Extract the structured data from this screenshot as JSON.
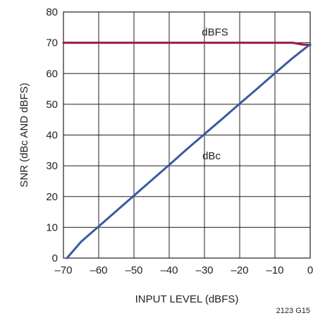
{
  "chart_data": {
    "type": "line",
    "xlabel": "INPUT LEVEL (dBFS)",
    "ylabel": "SNR (dBc AND dBFS)",
    "xlim": [
      -70,
      0
    ],
    "ylim": [
      0,
      80
    ],
    "x_ticks": [
      -70,
      -60,
      -50,
      -40,
      -30,
      -20,
      -10,
      0
    ],
    "x_tick_labels": [
      "–70",
      "–60",
      "–50",
      "–40",
      "–30",
      "–20",
      "–10",
      "0"
    ],
    "y_ticks": [
      0,
      10,
      20,
      30,
      40,
      50,
      60,
      70,
      80
    ],
    "y_tick_labels": [
      "0",
      "10",
      "20",
      "30",
      "40",
      "50",
      "60",
      "70",
      "80"
    ],
    "grid": true,
    "legend": "none",
    "series": [
      {
        "name": "dBFS",
        "color": "#9b1c40",
        "x": [
          -70,
          -60,
          -50,
          -40,
          -30,
          -20,
          -10,
          -5,
          -2,
          0
        ],
        "y": [
          70,
          70,
          70,
          70,
          70,
          70,
          70,
          70,
          69.4,
          69.3
        ]
      },
      {
        "name": "dBc",
        "color": "#3d5a9e",
        "x": [
          -69,
          -65,
          -60,
          -55,
          -50,
          -45,
          -40,
          -35,
          -30,
          -25,
          -20,
          -15,
          -10,
          -5,
          0
        ],
        "y": [
          0,
          5.3,
          10.3,
          15.3,
          20.3,
          25.3,
          30.3,
          35.4,
          40.3,
          45.2,
          50.2,
          55.1,
          60.1,
          65.0,
          69.5
        ]
      }
    ],
    "annotations": [
      {
        "text": "dBFS",
        "x": -27,
        "y": 73.5
      },
      {
        "text": "dBc",
        "x": -28,
        "y": 33.2
      }
    ]
  },
  "figure_code": "2123 G15"
}
